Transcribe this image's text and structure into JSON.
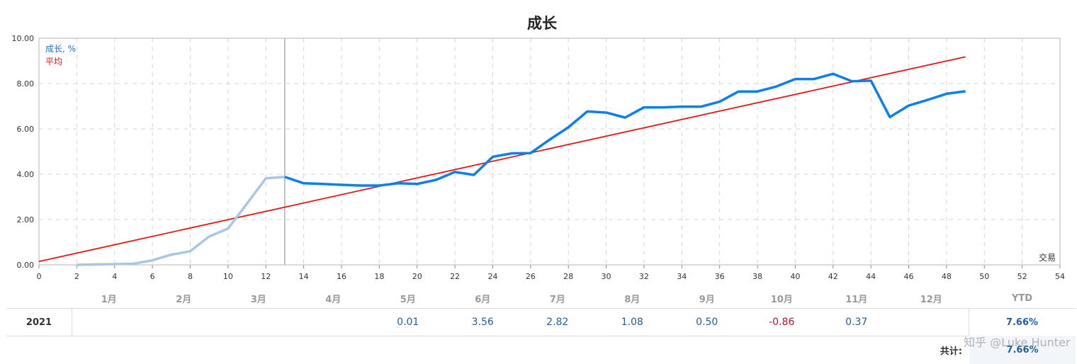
{
  "chart_data": {
    "type": "line",
    "title": "成长",
    "xlabel": "交易",
    "ylabel": "",
    "xlim": [
      0,
      54
    ],
    "ylim": [
      0,
      10
    ],
    "x_ticks": [
      "0",
      "2",
      "4",
      "6",
      "8",
      "10",
      "12",
      "14",
      "16",
      "18",
      "20",
      "22",
      "24",
      "26",
      "28",
      "30",
      "32",
      "34",
      "36",
      "38",
      "40",
      "42",
      "44",
      "46",
      "48",
      "50",
      "52",
      "54"
    ],
    "y_ticks": [
      "0.00",
      "2.00",
      "4.00",
      "6.00",
      "8.00",
      "10.00"
    ],
    "grid": true,
    "marker_x": 13,
    "legend": [
      {
        "name": "成长, %",
        "color": "#1a72c8"
      },
      {
        "name": "平均",
        "color": "#e01818"
      }
    ],
    "series": [
      {
        "name": "成长, %",
        "color_before": "#a9c7e3",
        "color_after": "#0d7fe8",
        "split_x": 13,
        "x": [
          2,
          3,
          4,
          5,
          6,
          7,
          8,
          9,
          10,
          11,
          12,
          13,
          14,
          15,
          16,
          17,
          18,
          19,
          20,
          21,
          22,
          23,
          24,
          25,
          26,
          27,
          28,
          29,
          30,
          31,
          32,
          33,
          34,
          35,
          36,
          37,
          38,
          39,
          40,
          41,
          42,
          43,
          44,
          45,
          46,
          47,
          48,
          49
        ],
        "values": [
          0.0,
          0.02,
          0.03,
          0.05,
          0.2,
          0.45,
          0.6,
          1.25,
          1.6,
          2.7,
          3.82,
          3.88,
          3.6,
          3.57,
          3.53,
          3.5,
          3.5,
          3.6,
          3.57,
          3.75,
          4.1,
          3.97,
          4.77,
          4.92,
          4.93,
          5.52,
          6.07,
          6.77,
          6.72,
          6.5,
          6.95,
          6.95,
          6.98,
          6.98,
          7.2,
          7.65,
          7.65,
          7.87,
          8.2,
          8.2,
          8.43,
          8.1,
          8.13,
          6.52,
          7.03,
          7.28,
          7.55,
          7.66
        ]
      },
      {
        "name": "平均",
        "color": "#e01818",
        "x": [
          0,
          49
        ],
        "values": [
          0.15,
          9.18
        ]
      }
    ]
  },
  "table": {
    "months": [
      "1月",
      "2月",
      "3月",
      "4月",
      "5月",
      "6月",
      "7月",
      "8月",
      "9月",
      "10月",
      "11月",
      "12月"
    ],
    "ytd_header": "YTD",
    "year": "2021",
    "values": [
      "",
      "",
      "",
      "",
      "0.01",
      "3.56",
      "2.82",
      "1.08",
      "0.50",
      "-0.86",
      "0.37",
      ""
    ],
    "ytd_value": "7.66%",
    "total_label": "共计:",
    "total_value": "7.66%"
  },
  "watermark": "知乎 @Luke Hunter"
}
